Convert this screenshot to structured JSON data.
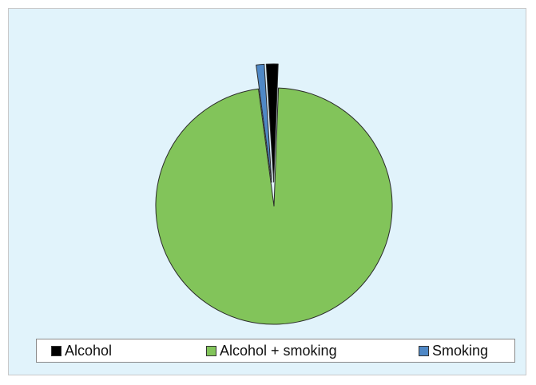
{
  "chart_data": {
    "type": "pie",
    "title": "",
    "categories": [
      "Alcohol",
      "Alcohol + smoking",
      "Smoking"
    ],
    "values": [
      1.6,
      97.3,
      1.1
    ],
    "exploded": [
      true,
      false,
      true
    ],
    "colors": [
      "#000000",
      "#82c45a",
      "#4f88c6"
    ],
    "legend_position": "bottom"
  },
  "legend": {
    "items": [
      {
        "label": "Alcohol",
        "color": "#000000"
      },
      {
        "label": "Alcohol + smoking",
        "color": "#82c45a"
      },
      {
        "label": "Smoking",
        "color": "#4f88c6"
      }
    ]
  }
}
